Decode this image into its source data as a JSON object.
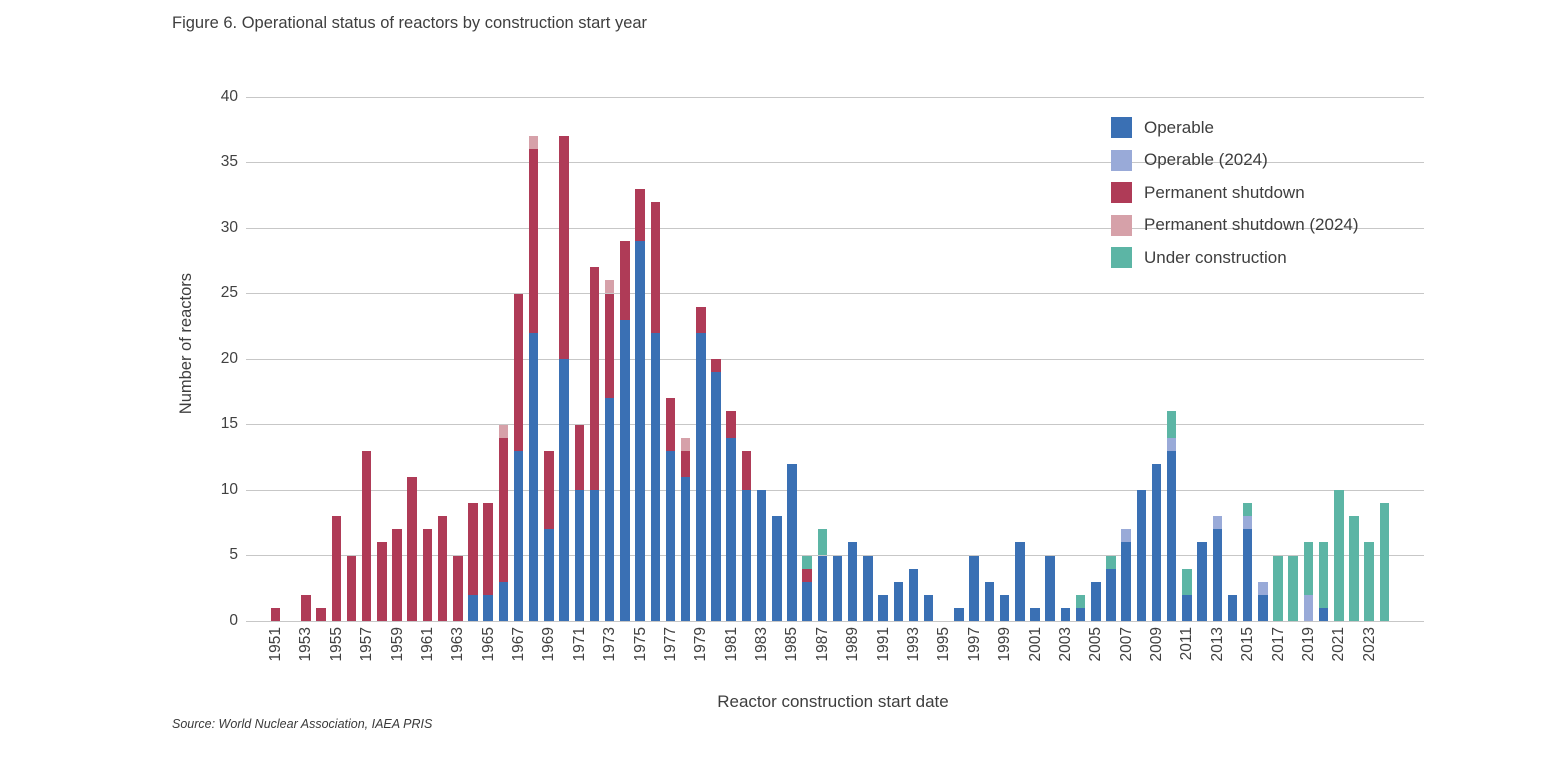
{
  "title": "Figure 6. Operational status of reactors by construction start year",
  "source": "Source: World Nuclear Association, IAEA PRIS",
  "chart_data": {
    "type": "bar",
    "stacked": true,
    "title": "Figure 6. Operational status of reactors by construction start year",
    "xlabel": "Reactor construction start date",
    "ylabel": "Number of reactors",
    "ylim": [
      0,
      40
    ],
    "ytick_step": 5,
    "grid": true,
    "legend_position": "top-right",
    "x": [
      1951,
      1952,
      1953,
      1954,
      1955,
      1956,
      1957,
      1958,
      1959,
      1960,
      1961,
      1962,
      1963,
      1964,
      1965,
      1966,
      1967,
      1968,
      1969,
      1970,
      1971,
      1972,
      1973,
      1974,
      1975,
      1976,
      1977,
      1978,
      1979,
      1980,
      1981,
      1982,
      1983,
      1984,
      1985,
      1986,
      1987,
      1988,
      1989,
      1990,
      1991,
      1992,
      1993,
      1994,
      1995,
      1996,
      1997,
      1998,
      1999,
      2000,
      2001,
      2002,
      2003,
      2004,
      2005,
      2006,
      2007,
      2008,
      2009,
      2010,
      2011,
      2012,
      2013,
      2014,
      2015,
      2016,
      2017,
      2018,
      2019,
      2020,
      2021,
      2022,
      2023,
      2024
    ],
    "x_tick_labels": [
      1951,
      1953,
      1955,
      1957,
      1959,
      1961,
      1963,
      1965,
      1967,
      1969,
      1971,
      1973,
      1975,
      1977,
      1979,
      1981,
      1983,
      1985,
      1987,
      1989,
      1991,
      1993,
      1995,
      1997,
      1999,
      2001,
      2003,
      2005,
      2007,
      2009,
      2011,
      2013,
      2015,
      2017,
      2019,
      2021,
      2023
    ],
    "series": [
      {
        "name": "Operable",
        "key": "operable",
        "color": "#3A70B4",
        "values": [
          0,
          0,
          0,
          0,
          0,
          0,
          0,
          0,
          0,
          0,
          0,
          0,
          0,
          2,
          2,
          3,
          13,
          22,
          7,
          20,
          10,
          10,
          17,
          23,
          29,
          22,
          13,
          11,
          22,
          19,
          14,
          10,
          10,
          8,
          12,
          3,
          5,
          5,
          6,
          5,
          2,
          3,
          4,
          2,
          0,
          1,
          5,
          3,
          2,
          6,
          1,
          5,
          1,
          1,
          3,
          4,
          6,
          10,
          12,
          13,
          2,
          6,
          7,
          2,
          7,
          2,
          0,
          0,
          0,
          1,
          0,
          0,
          0,
          0
        ]
      },
      {
        "name": "Operable (2024)",
        "key": "operable-2024",
        "color": "#99AAD8",
        "values": [
          0,
          0,
          0,
          0,
          0,
          0,
          0,
          0,
          0,
          0,
          0,
          0,
          0,
          0,
          0,
          0,
          0,
          0,
          0,
          0,
          0,
          0,
          0,
          0,
          0,
          0,
          0,
          0,
          0,
          0,
          0,
          0,
          0,
          0,
          0,
          0,
          0,
          0,
          0,
          0,
          0,
          0,
          0,
          0,
          0,
          0,
          0,
          0,
          0,
          0,
          0,
          0,
          0,
          0,
          0,
          0,
          1,
          0,
          0,
          1,
          0,
          0,
          1,
          0,
          1,
          1,
          0,
          0,
          2,
          0,
          0,
          0,
          0,
          0
        ]
      },
      {
        "name": "Permanent shutdown",
        "key": "permanent-shutdown",
        "color": "#AF3B57",
        "values": [
          1,
          0,
          2,
          1,
          8,
          5,
          13,
          6,
          7,
          11,
          7,
          8,
          5,
          7,
          7,
          11,
          12,
          14,
          6,
          17,
          5,
          17,
          8,
          6,
          4,
          10,
          4,
          2,
          2,
          1,
          2,
          3,
          0,
          0,
          0,
          1,
          0,
          0,
          0,
          0,
          0,
          0,
          0,
          0,
          0,
          0,
          0,
          0,
          0,
          0,
          0,
          0,
          0,
          0,
          0,
          0,
          0,
          0,
          0,
          0,
          0,
          0,
          0,
          0,
          0,
          0,
          0,
          0,
          0,
          0,
          0,
          0,
          0,
          0
        ]
      },
      {
        "name": "Permanent shutdown (2024)",
        "key": "permanent-shutdown-2024",
        "color": "#D6A1A9",
        "values": [
          0,
          0,
          0,
          0,
          0,
          0,
          0,
          0,
          0,
          0,
          0,
          0,
          0,
          0,
          0,
          1,
          0,
          1,
          0,
          0,
          0,
          0,
          1,
          0,
          0,
          0,
          0,
          1,
          0,
          0,
          0,
          0,
          0,
          0,
          0,
          0,
          0,
          0,
          0,
          0,
          0,
          0,
          0,
          0,
          0,
          0,
          0,
          0,
          0,
          0,
          0,
          0,
          0,
          0,
          0,
          0,
          0,
          0,
          0,
          0,
          0,
          0,
          0,
          0,
          0,
          0,
          0,
          0,
          0,
          0,
          0,
          0,
          0,
          0
        ]
      },
      {
        "name": "Under construction",
        "key": "under-construction",
        "color": "#5CB5A5",
        "values": [
          0,
          0,
          0,
          0,
          0,
          0,
          0,
          0,
          0,
          0,
          0,
          0,
          0,
          0,
          0,
          0,
          0,
          0,
          0,
          0,
          0,
          0,
          0,
          0,
          0,
          0,
          0,
          0,
          0,
          0,
          0,
          0,
          0,
          0,
          0,
          1,
          2,
          0,
          0,
          0,
          0,
          0,
          0,
          0,
          0,
          0,
          0,
          0,
          0,
          0,
          0,
          0,
          0,
          1,
          0,
          1,
          0,
          0,
          0,
          2,
          2,
          0,
          0,
          0,
          1,
          0,
          5,
          5,
          4,
          5,
          10,
          8,
          6,
          9
        ]
      }
    ]
  }
}
